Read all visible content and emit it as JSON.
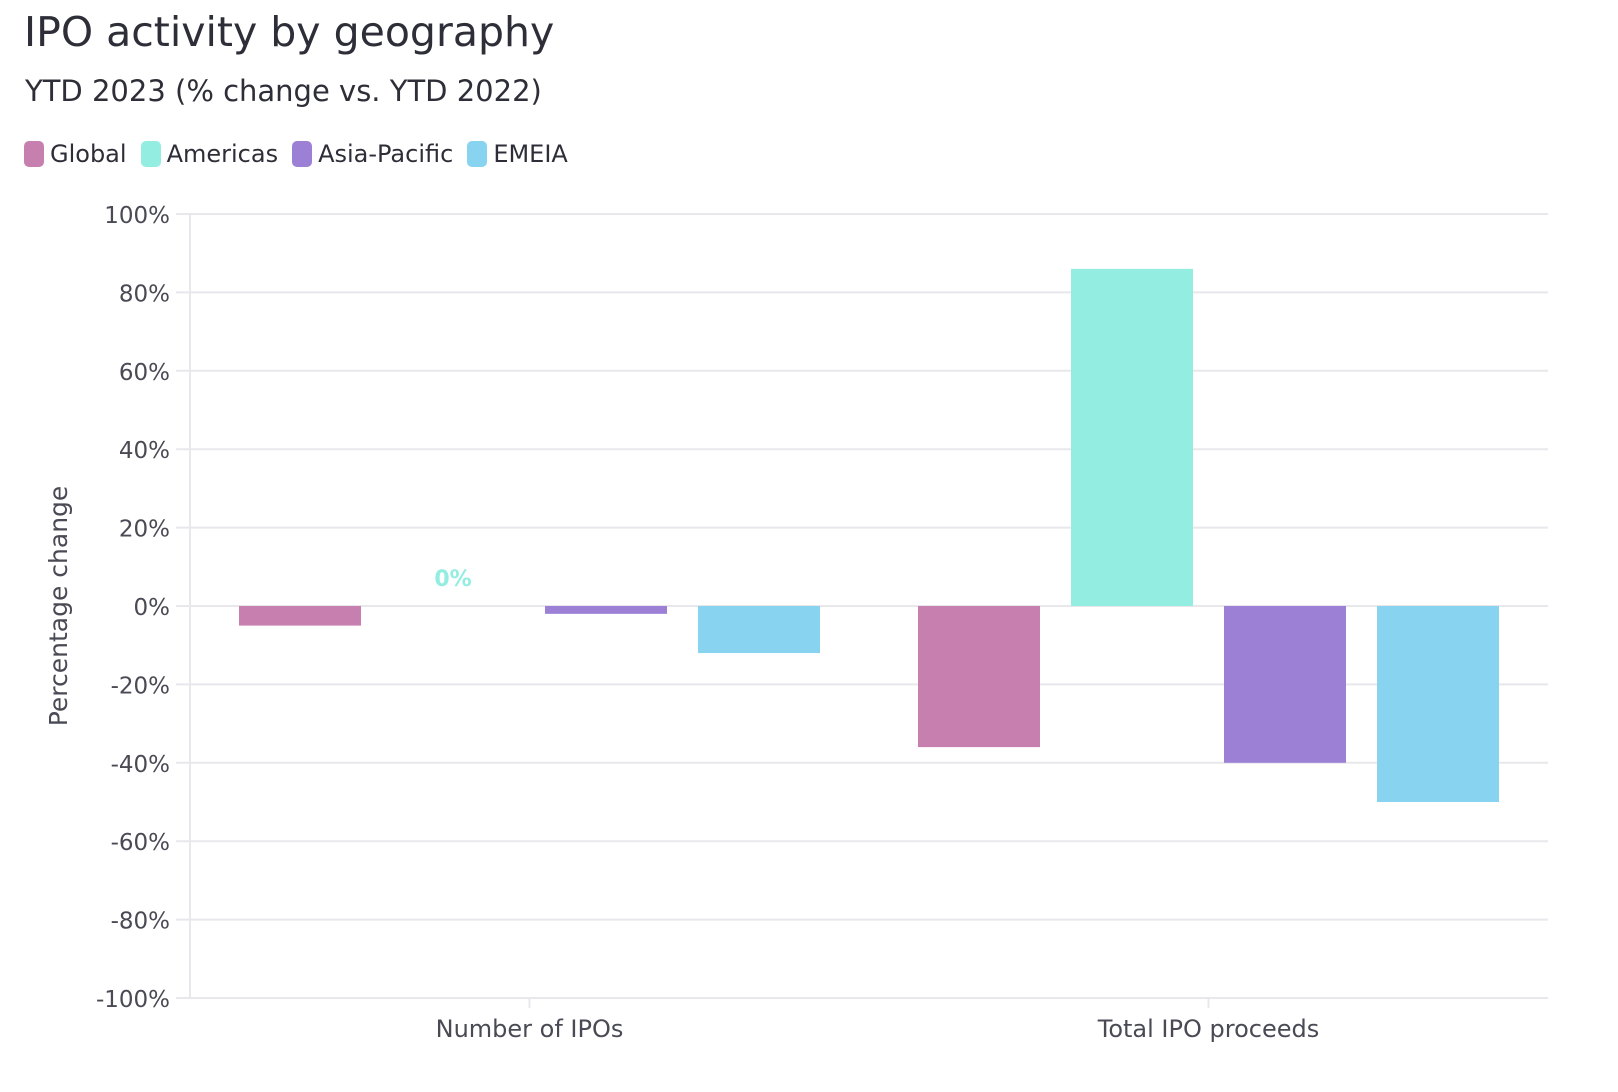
{
  "chart_data": {
    "type": "bar",
    "title": "IPO activity by geography",
    "subtitle": "YTD 2023 (% change vs. YTD 2022)",
    "ylabel": "Percentage change",
    "xlabel": "",
    "categories": [
      "Number of IPOs",
      "Total IPO proceeds"
    ],
    "series": [
      {
        "name": "Global",
        "color": "#c77fb0",
        "values": [
          -5,
          -36
        ]
      },
      {
        "name": "Americas",
        "color": "#93ede1",
        "values": [
          0,
          86
        ]
      },
      {
        "name": "Asia-Pacific",
        "color": "#9b80d5",
        "values": [
          -2,
          -40
        ]
      },
      {
        "name": "EMEIA",
        "color": "#87d3f0",
        "values": [
          -12,
          -50
        ]
      }
    ],
    "ylim": [
      -100,
      100
    ],
    "yticks": [
      100,
      80,
      60,
      40,
      20,
      0,
      -20,
      -40,
      -60,
      -80,
      -100
    ],
    "ytick_labels": [
      "100%",
      "80%",
      "60%",
      "40%",
      "20%",
      "0%",
      "-20%",
      "-40%",
      "-60%",
      "-80%",
      "-100%"
    ],
    "annotations": [
      {
        "text": "0%",
        "category": "Number of IPOs",
        "series": "Americas"
      }
    ],
    "grid": true,
    "legend_position": "top-left"
  }
}
